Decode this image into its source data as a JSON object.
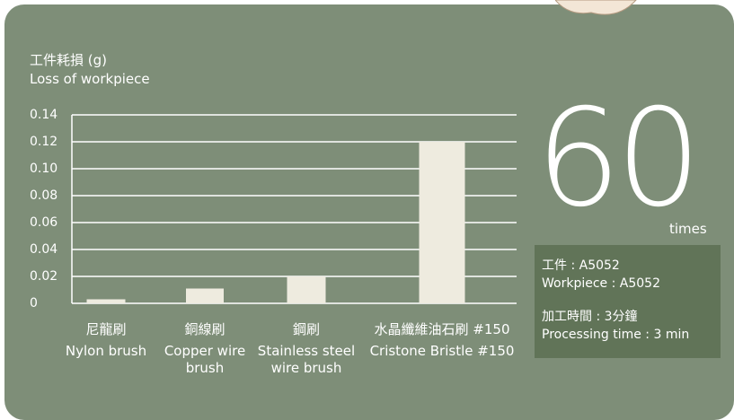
{
  "chart_data": {
    "type": "bar",
    "y_label": [
      "工件耗損 (g)",
      "Loss of workpiece"
    ],
    "categories": [
      "Nylon brush",
      "Copper wire brush",
      "Stainless steel wire brush",
      "Cristone Bristle #150"
    ],
    "categories_zh": [
      "尼龍刷",
      "銅線刷",
      "鋼刷",
      "水晶纖維油石刷 #150"
    ],
    "values": [
      0.003,
      0.011,
      0.02,
      0.12
    ],
    "color": "#eeebdf",
    "ylim": [
      0,
      0.14
    ],
    "yticks": [
      0,
      0.02,
      0.04,
      0.06,
      0.08,
      {
        "value": 0.1,
        "label": "0.10"
      },
      0.12,
      0.14
    ],
    "grid": true
  },
  "info": {
    "count": "60",
    "unit": "times",
    "lines": [
      "工件 : A5052",
      "Workpiece : A5052",
      "加工時間 : 3分鐘",
      "Processing time : 3 min"
    ]
  }
}
